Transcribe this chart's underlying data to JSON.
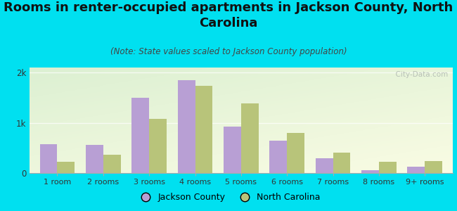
{
  "title": "Rooms in renter-occupied apartments in Jackson County, North\nCarolina",
  "subtitle": "(Note: State values scaled to Jackson County population)",
  "categories": [
    "1 room",
    "2 rooms",
    "3 rooms",
    "4 rooms",
    "5 rooms",
    "6 rooms",
    "7 rooms",
    "8 rooms",
    "9+ rooms"
  ],
  "jackson_county": [
    580,
    560,
    1500,
    1850,
    930,
    640,
    290,
    55,
    125
  ],
  "north_carolina": [
    220,
    370,
    1080,
    1730,
    1390,
    800,
    410,
    230,
    235
  ],
  "jackson_color": "#b89fd4",
  "nc_color": "#b8c47a",
  "background_outer": "#00e0f0",
  "ylim": [
    0,
    2100
  ],
  "yticks": [
    0,
    1000,
    2000
  ],
  "ytick_labels": [
    "0",
    "1k",
    "2k"
  ],
  "watermark": "  City-Data.com",
  "legend_jackson": "Jackson County",
  "legend_nc": "North Carolina",
  "title_fontsize": 13,
  "subtitle_fontsize": 8.5,
  "bar_width": 0.38
}
